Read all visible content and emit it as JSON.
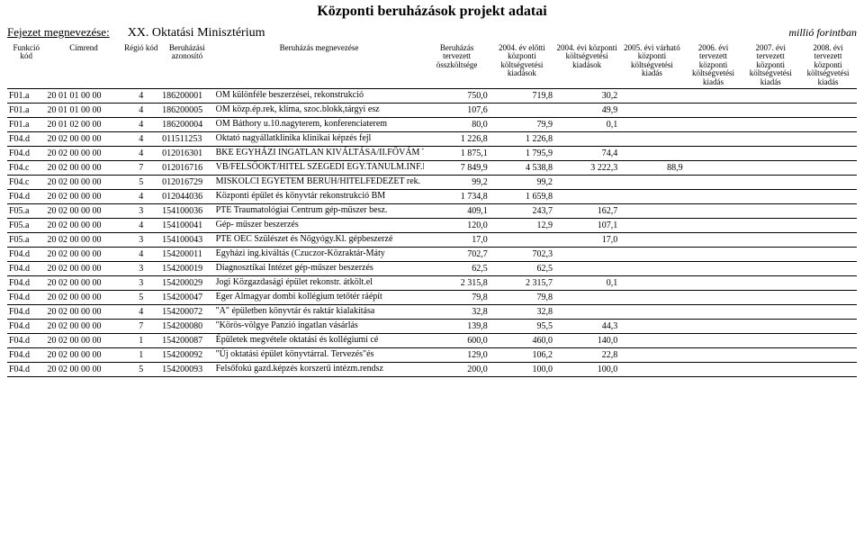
{
  "title": "Központi beruházások projekt adatai",
  "chapter_label": "Fejezet megnevezése:",
  "chapter_value": "XX. Oktatási Minisztérium",
  "unit": "millió forintban",
  "headers": {
    "funk": "Funkció kód",
    "cim": "Címrend",
    "regio": "Régió kód",
    "azon": "Beruházási azonosító",
    "name_top": "Beruházás megnevezése",
    "v1_top": "Beruházás tervezett",
    "v1_sub": "összköltsége",
    "v2_top": "2004. év előtti központi költségvetési",
    "v2_sub": "kiadások",
    "v3_top": "2004. évi központi költségvetési",
    "v3_sub": "kiadások",
    "v4": "2005. évi várható központi költségvetési kiadás",
    "v5": "2006. évi tervezett központi költségvetési kiadás",
    "v6": "2007. évi tervezett központi költségvetési kiadás",
    "v7": "2008. évi tervezett központi költségvetési kiadás"
  },
  "rows": [
    {
      "funk": "F01.a",
      "cim": "20 01 01 00 00",
      "regio": "4",
      "azon": "186200001",
      "name": "OM különféle beszerzései, rekonstrukció",
      "v1": "750,0",
      "v2": "719,8",
      "v3": "30,2",
      "v4": "",
      "v5": "",
      "v6": "",
      "v7": ""
    },
    {
      "funk": "F01.a",
      "cim": "20 01 01 00 00",
      "regio": "4",
      "azon": "186200005",
      "name": "OM közp.ép.rek, klíma, szoc.blokk,tárgyi esz",
      "v1": "107,6",
      "v2": "",
      "v3": "49,9",
      "v4": "",
      "v5": "",
      "v6": "",
      "v7": ""
    },
    {
      "funk": "F01.a",
      "cim": "20 01 02 00 00",
      "regio": "4",
      "azon": "186200004",
      "name": "OM Báthory u.10.nagyterem, konferenciaterem",
      "v1": "80,0",
      "v2": "79,9",
      "v3": "0,1",
      "v4": "",
      "v5": "",
      "v6": "",
      "v7": ""
    },
    {
      "funk": "F04.d",
      "cim": "20 02 00 00 00",
      "regio": "4",
      "azon": "011511253",
      "name": "Oktató nagyállatklinika klinikai képzés fejl",
      "v1": "1 226,8",
      "v2": "1 226,8",
      "v3": "",
      "v4": "",
      "v5": "",
      "v6": "",
      "v7": ""
    },
    {
      "funk": "F04.d",
      "cim": "20 02 00 00 00",
      "regio": "4",
      "azon": "012016301",
      "name": "BKE EGYHÁZI INGATLAN KIVÁLTÁSA/II.FŐVÁM TÉR",
      "v1": "1 875,1",
      "v2": "1 795,9",
      "v3": "74,4",
      "v4": "",
      "v5": "",
      "v6": "",
      "v7": ""
    },
    {
      "funk": "F04.c",
      "cim": "20 02 00 00 00",
      "regio": "7",
      "azon": "012016716",
      "name": "VB/FELSŐOKT/HITEL SZEGEDI EGY.TANULM.INF.KÖZ",
      "v1": "7 849,9",
      "v2": "4 538,8",
      "v3": "3 222,3",
      "v4": "88,9",
      "v5": "",
      "v6": "",
      "v7": ""
    },
    {
      "funk": "F04.c",
      "cim": "20 02 00 00 00",
      "regio": "5",
      "azon": "012016729",
      "name": "MISKOLCI EGYETEM BERUH/HITELFEDEZET rek.",
      "v1": "99,2",
      "v2": "99,2",
      "v3": "",
      "v4": "",
      "v5": "",
      "v6": "",
      "v7": ""
    },
    {
      "funk": "F04.d",
      "cim": "20 02 00 00 00",
      "regio": "4",
      "azon": "012044036",
      "name": "Központi épület és könyvtár rekonstrukció BM",
      "v1": "1 734,8",
      "v2": "1 659,8",
      "v3": "",
      "v4": "",
      "v5": "",
      "v6": "",
      "v7": ""
    },
    {
      "funk": "F05.a",
      "cim": "20 02 00 00 00",
      "regio": "3",
      "azon": "154100036",
      "name": "PTE Traumatológiai Centrum gép-műszer besz.",
      "v1": "409,1",
      "v2": "243,7",
      "v3": "162,7",
      "v4": "",
      "v5": "",
      "v6": "",
      "v7": ""
    },
    {
      "funk": "F05.a",
      "cim": "20 02 00 00 00",
      "regio": "4",
      "azon": "154100041",
      "name": "Gép- műszer beszerzés",
      "v1": "120,0",
      "v2": "12,9",
      "v3": "107,1",
      "v4": "",
      "v5": "",
      "v6": "",
      "v7": ""
    },
    {
      "funk": "F05.a",
      "cim": "20 02 00 00 00",
      "regio": "3",
      "azon": "154100043",
      "name": "PTE OEC Szülészet és Nőgyógy.Kl. gépbeszerzé",
      "v1": "17,0",
      "v2": "",
      "v3": "17,0",
      "v4": "",
      "v5": "",
      "v6": "",
      "v7": ""
    },
    {
      "funk": "F04.d",
      "cim": "20 02 00 00 00",
      "regio": "4",
      "azon": "154200011",
      "name": "Egyházi ing.kiváltás (Czuczor-Közraktár-Máty",
      "v1": "702,7",
      "v2": "702,3",
      "v3": "",
      "v4": "",
      "v5": "",
      "v6": "",
      "v7": ""
    },
    {
      "funk": "F04.d",
      "cim": "20 02 00 00 00",
      "regio": "3",
      "azon": "154200019",
      "name": "Diagnosztikai Intézet gép-műszer beszerzés",
      "v1": "62,5",
      "v2": "62,5",
      "v3": "",
      "v4": "",
      "v5": "",
      "v6": "",
      "v7": ""
    },
    {
      "funk": "F04.d",
      "cim": "20 02 00 00 00",
      "regio": "3",
      "azon": "154200029",
      "name": "Jogi Közgazdasági épület rekonstr. átkölt.el",
      "v1": "2 315,8",
      "v2": "2 315,7",
      "v3": "0,1",
      "v4": "",
      "v5": "",
      "v6": "",
      "v7": ""
    },
    {
      "funk": "F04.d",
      "cim": "20 02 00 00 00",
      "regio": "5",
      "azon": "154200047",
      "name": "Eger Almagyar dombi kollégium tetőtér ráépít",
      "v1": "79,8",
      "v2": "79,8",
      "v3": "",
      "v4": "",
      "v5": "",
      "v6": "",
      "v7": ""
    },
    {
      "funk": "F04.d",
      "cim": "20 02 00 00 00",
      "regio": "4",
      "azon": "154200072",
      "name": "\"A\" épületben könyvtár és raktár kialakítása",
      "v1": "32,8",
      "v2": "32,8",
      "v3": "",
      "v4": "",
      "v5": "",
      "v6": "",
      "v7": ""
    },
    {
      "funk": "F04.d",
      "cim": "20 02 00 00 00",
      "regio": "7",
      "azon": "154200080",
      "name": "\"Körös-völgye Panzió ingatlan vásárlás",
      "v1": "139,8",
      "v2": "95,5",
      "v3": "44,3",
      "v4": "",
      "v5": "",
      "v6": "",
      "v7": ""
    },
    {
      "funk": "F04.d",
      "cim": "20 02 00 00 00",
      "regio": "1",
      "azon": "154200087",
      "name": "Épületek megvétele oktatási és kollégiumi cé",
      "v1": "600,0",
      "v2": "460,0",
      "v3": "140,0",
      "v4": "",
      "v5": "",
      "v6": "",
      "v7": ""
    },
    {
      "funk": "F04.d",
      "cim": "20 02 00 00 00",
      "regio": "1",
      "azon": "154200092",
      "name": "\"Új oktatási épület könyvtárral. Tervezés\"és",
      "v1": "129,0",
      "v2": "106,2",
      "v3": "22,8",
      "v4": "",
      "v5": "",
      "v6": "",
      "v7": ""
    },
    {
      "funk": "F04.d",
      "cim": "20 02 00 00 00",
      "regio": "5",
      "azon": "154200093",
      "name": "Felsőfokú gazd.képzés korszerű intézm.rendsz",
      "v1": "200,0",
      "v2": "100,0",
      "v3": "100,0",
      "v4": "",
      "v5": "",
      "v6": "",
      "v7": ""
    }
  ]
}
